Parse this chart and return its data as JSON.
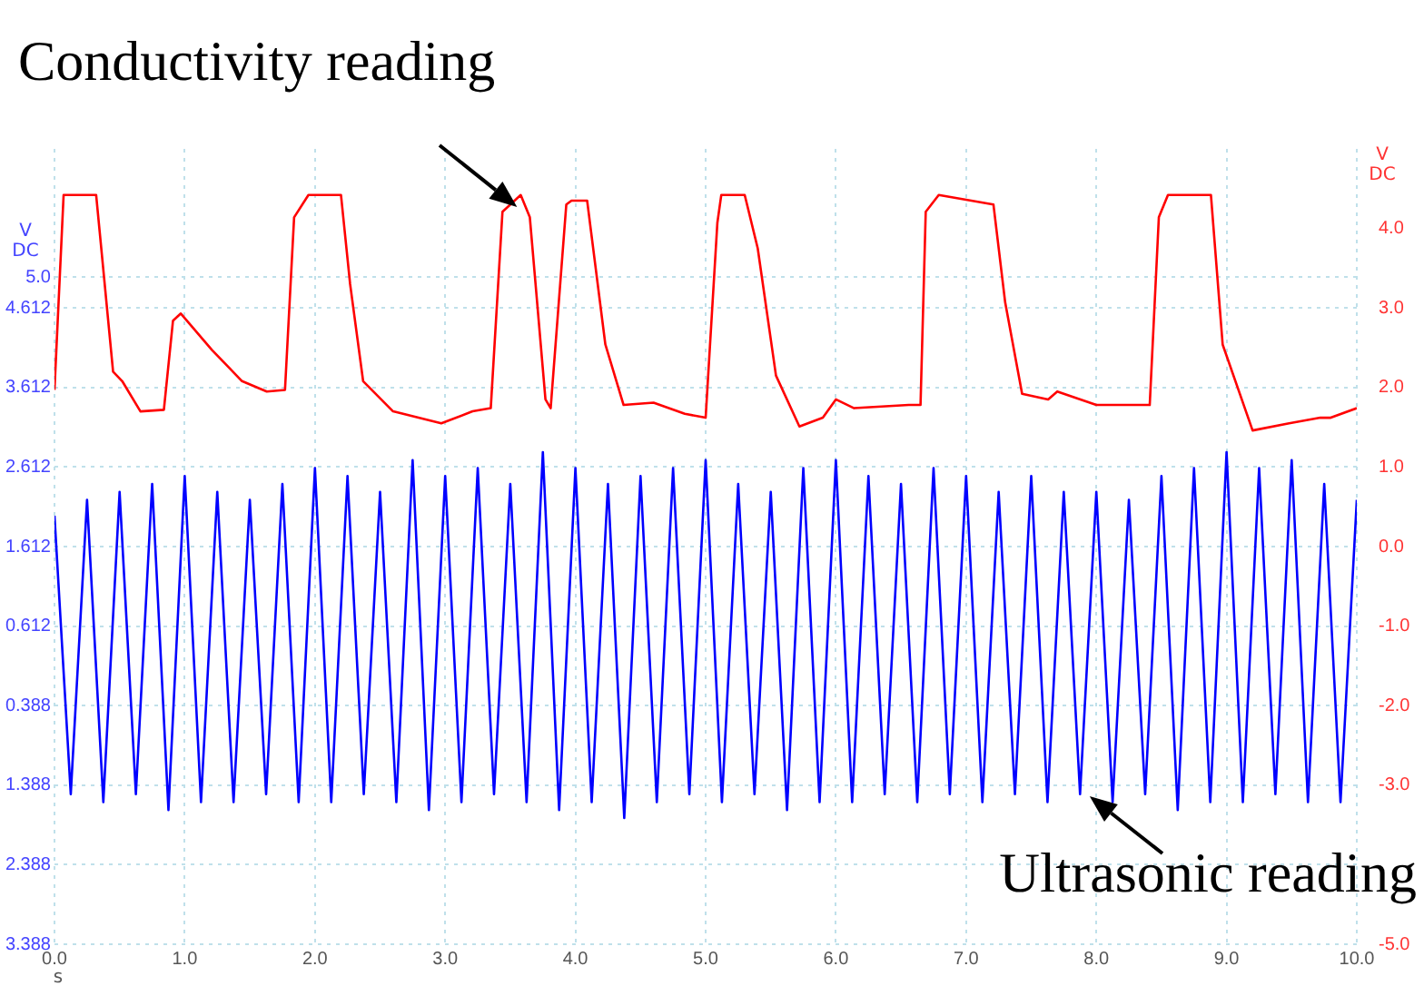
{
  "chart_data": {
    "type": "line",
    "annotations": [
      {
        "text": "Conductivity reading",
        "x": 3.65,
        "y": 5.752
      },
      {
        "text": "Ultrasonic reading",
        "x": 7.85,
        "y": -1.4
      }
    ],
    "xlabel": "s",
    "ylabel": "V DC",
    "y2label": "V DC",
    "xlim": [
      0,
      10
    ],
    "xticks": [
      {
        "value": 0,
        "label": "0.0"
      },
      {
        "value": 1,
        "label": "1.0"
      },
      {
        "value": 2,
        "label": "2.0"
      },
      {
        "value": 3,
        "label": "3.0"
      },
      {
        "value": 4,
        "label": "4.0"
      },
      {
        "value": 5,
        "label": "5.0"
      },
      {
        "value": 6,
        "label": "6.0"
      },
      {
        "value": 7,
        "label": "7.0"
      },
      {
        "value": 8,
        "label": "8.0"
      },
      {
        "value": 9,
        "label": "9.0"
      },
      {
        "value": 10,
        "label": "10.0"
      }
    ],
    "ylim": [
      -3.388,
      6.612
    ],
    "yticks": [
      {
        "value": 5,
        "label": "5.0"
      },
      4.612,
      3.612,
      2.612,
      1.612,
      0.612,
      {
        "value": -0.388,
        "label": "0.388"
      },
      {
        "value": -1.388,
        "label": "1.388"
      },
      {
        "value": -2.388,
        "label": "2.388"
      },
      {
        "value": -3.388,
        "label": "3.388"
      }
    ],
    "y2lim": [
      -5,
      5
    ],
    "y2ticks": [
      {
        "value": 4,
        "label": "4.0"
      },
      {
        "value": 3,
        "label": "3.0"
      },
      {
        "value": 2,
        "label": "2.0"
      },
      {
        "value": 1,
        "label": "1.0"
      },
      {
        "value": 0,
        "label": "0.0"
      },
      {
        "value": -1,
        "label": "-1.0"
      },
      {
        "value": -2,
        "label": "-2.0"
      },
      {
        "value": -3,
        "label": "-3.0"
      },
      {
        "value": -5,
        "label": "-5.0"
      }
    ],
    "grid": true,
    "legend": false,
    "marker": "none",
    "line_style": "solid",
    "series": [
      {
        "color": "#0000ff",
        "x": [
          0,
          0.125,
          0.25,
          0.375,
          0.5,
          0.625,
          0.75,
          0.875,
          1,
          1.125,
          1.25,
          1.375,
          1.5,
          1.625,
          1.75,
          1.875,
          2,
          2.125,
          2.25,
          2.375,
          2.5,
          2.625,
          2.75,
          2.875,
          3,
          3.125,
          3.25,
          3.375,
          3.5,
          3.625,
          3.75,
          3.875,
          4,
          4.125,
          4.25,
          4.375,
          4.5,
          4.625,
          4.75,
          4.875,
          5,
          5.125,
          5.25,
          5.375,
          5.5,
          5.625,
          5.75,
          5.875,
          6,
          6.125,
          6.25,
          6.375,
          6.5,
          6.625,
          6.75,
          6.875,
          7,
          7.125,
          7.25,
          7.375,
          7.5,
          7.625,
          7.75,
          7.875,
          8,
          8.125,
          8.25,
          8.375,
          8.5,
          8.625,
          8.75,
          8.875,
          9,
          9.125,
          9.25,
          9.375,
          9.5,
          9.625,
          9.75,
          9.875,
          10
        ],
        "values": [
          2.0,
          -1.5,
          2.2,
          -1.6,
          2.3,
          -1.5,
          2.4,
          -1.7,
          2.5,
          -1.6,
          2.3,
          -1.6,
          2.2,
          -1.5,
          2.4,
          -1.6,
          2.6,
          -1.6,
          2.5,
          -1.5,
          2.3,
          -1.6,
          2.7,
          -1.7,
          2.5,
          -1.6,
          2.6,
          -1.5,
          2.4,
          -1.6,
          2.8,
          -1.7,
          2.6,
          -1.6,
          2.4,
          -1.8,
          2.5,
          -1.6,
          2.6,
          -1.5,
          2.7,
          -1.6,
          2.4,
          -1.5,
          2.3,
          -1.7,
          2.6,
          -1.6,
          2.7,
          -1.6,
          2.5,
          -1.5,
          2.4,
          -1.6,
          2.6,
          -1.5,
          2.5,
          -1.6,
          2.3,
          -1.5,
          2.5,
          -1.6,
          2.3,
          -1.5,
          2.3,
          -1.6,
          2.2,
          -1.5,
          2.5,
          -1.7,
          2.6,
          -1.6,
          2.8,
          -1.6,
          2.6,
          -1.5,
          2.7,
          -1.6,
          2.4,
          -1.6,
          2.2
        ]
      },
      {
        "color": "#ff0000",
        "axis": "y2",
        "x": [
          0,
          0.07,
          0.32,
          0.45,
          0.52,
          0.66,
          0.84,
          0.91,
          0.97,
          1.21,
          1.44,
          1.63,
          1.77,
          1.84,
          1.95,
          2.2,
          2.27,
          2.37,
          2.6,
          2.97,
          3.21,
          3.35,
          3.44,
          3.58,
          3.65,
          3.77,
          3.81,
          3.93,
          3.97,
          4.09,
          4.23,
          4.37,
          4.6,
          4.84,
          5.0,
          5.09,
          5.12,
          5.3,
          5.4,
          5.54,
          5.72,
          5.9,
          6.0,
          6.14,
          6.56,
          6.65,
          6.69,
          6.79,
          7.21,
          7.3,
          7.43,
          7.63,
          7.7,
          8.0,
          8.41,
          8.48,
          8.55,
          8.88,
          8.97,
          9.2,
          9.48,
          9.72,
          9.8,
          10
        ],
        "values": [
          1.97,
          4.42,
          4.42,
          2.2,
          2.08,
          1.7,
          1.72,
          2.84,
          2.93,
          2.47,
          2.08,
          1.95,
          1.97,
          4.14,
          4.42,
          4.42,
          3.3,
          2.08,
          1.7,
          1.55,
          1.7,
          1.74,
          4.21,
          4.42,
          4.14,
          1.85,
          1.74,
          4.3,
          4.35,
          4.35,
          2.54,
          1.78,
          1.81,
          1.67,
          1.62,
          4.07,
          4.42,
          4.42,
          3.75,
          2.15,
          1.51,
          1.62,
          1.85,
          1.74,
          1.78,
          1.78,
          4.21,
          4.42,
          4.3,
          3.07,
          1.92,
          1.85,
          1.95,
          1.78,
          1.78,
          4.14,
          4.42,
          4.42,
          2.54,
          1.46,
          1.55,
          1.62,
          1.62,
          1.74
        ]
      }
    ]
  }
}
